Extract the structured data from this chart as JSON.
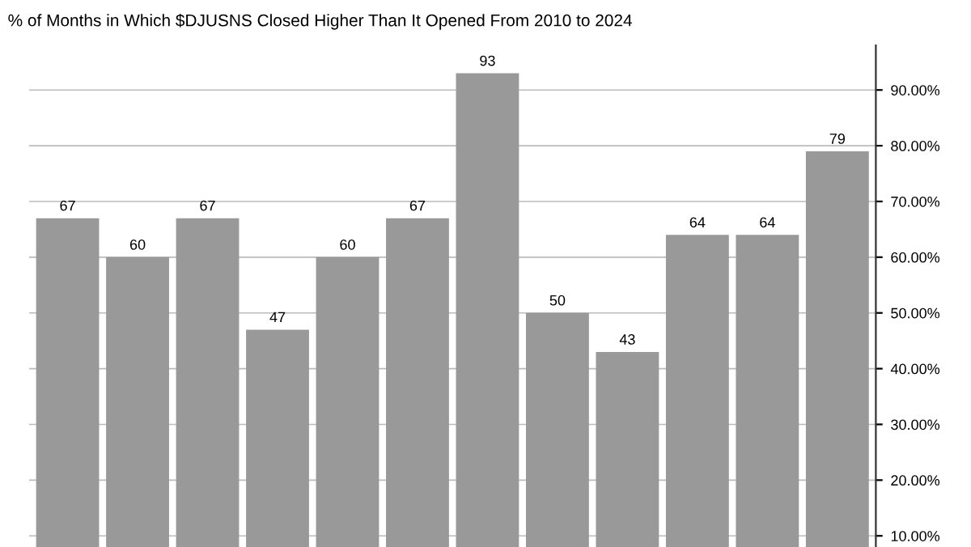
{
  "chart_data": {
    "type": "bar",
    "title": "% of Months in Which $DJUSNS Closed Higher Than It Opened From 2010 to 2024",
    "categories": [
      null,
      null,
      null,
      null,
      null,
      null,
      null,
      null,
      null,
      null,
      null,
      null
    ],
    "values": [
      67,
      60,
      67,
      47,
      60,
      67,
      93,
      50,
      43,
      64,
      64,
      79
    ],
    "color": "#999999",
    "data_labels": true,
    "grid": "y",
    "tick_labels": "y",
    "ylim": [
      8,
      98
    ],
    "yticks": [
      {
        "value": 10,
        "label": "10.00%"
      },
      {
        "value": 20,
        "label": "20.00%"
      },
      {
        "value": 30,
        "label": "30.00%"
      },
      {
        "value": 40,
        "label": "40.00%"
      },
      {
        "value": 50,
        "label": "50.00%"
      },
      {
        "value": 60,
        "label": "60.00%"
      },
      {
        "value": 70,
        "label": "70.00%"
      },
      {
        "value": 80,
        "label": "80.00%"
      },
      {
        "value": 90,
        "label": "90.00%"
      }
    ]
  }
}
